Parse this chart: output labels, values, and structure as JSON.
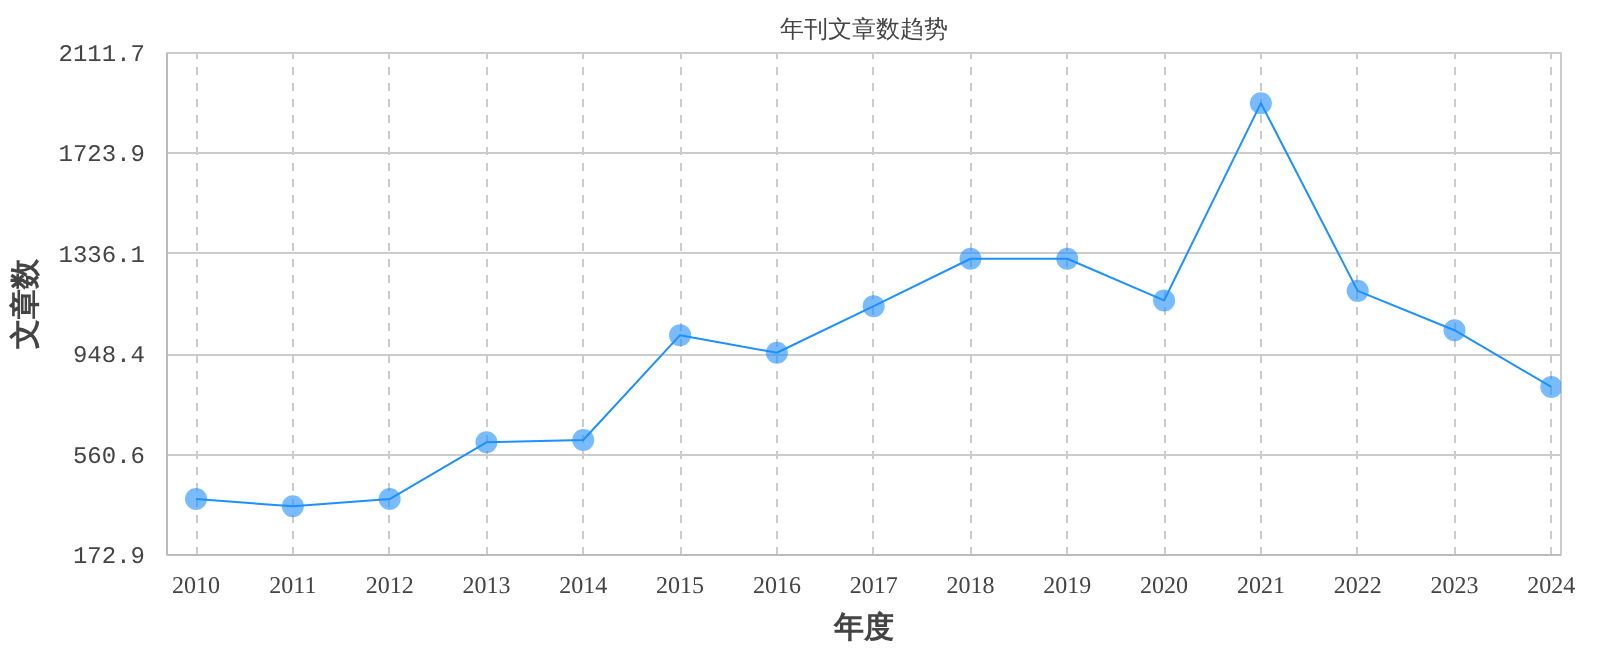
{
  "chart_data": {
    "type": "line",
    "title": "年刊文章数趋势",
    "xlabel": "年度",
    "ylabel": "文章数",
    "categories": [
      "2010",
      "2011",
      "2012",
      "2013",
      "2014",
      "2015",
      "2016",
      "2017",
      "2018",
      "2019",
      "2020",
      "2021",
      "2022",
      "2023",
      "2024"
    ],
    "series": [
      {
        "color": "#1e90ff",
        "values": [
          389,
          361,
          389,
          608,
          617,
          1022,
          954,
          1134,
          1317,
          1317,
          1156,
          1918,
          1193,
          1041,
          822
        ]
      }
    ],
    "ylim": [
      172.9,
      2111.7
    ],
    "yticks": [
      172.9,
      560.6,
      948.4,
      1336.1,
      1723.9,
      2111.7
    ],
    "grid": true,
    "marker": "circle",
    "line_style": "solid"
  }
}
